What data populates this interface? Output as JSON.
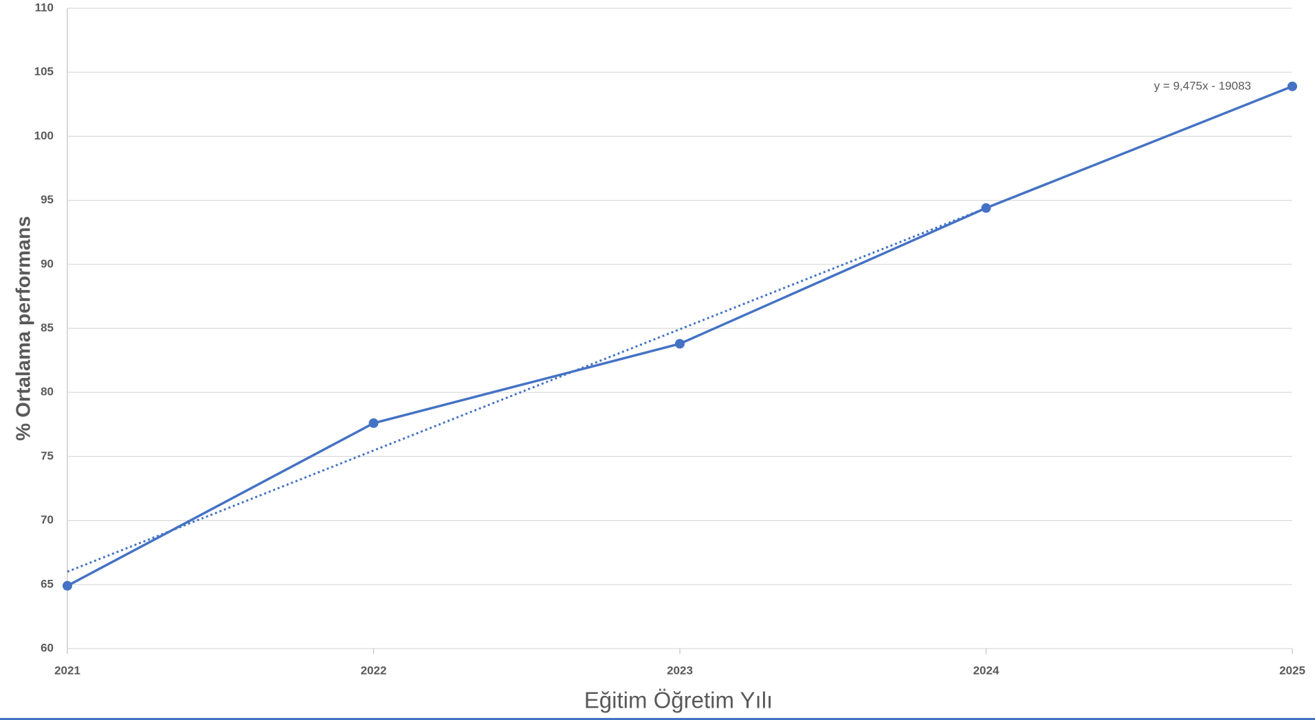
{
  "chart_data": {
    "type": "line",
    "x_label": "Eğitim Öğretim Yılı",
    "y_label": "% Ortalama performans",
    "x": [
      2021,
      2022,
      2023,
      2024,
      2025
    ],
    "series": [
      {
        "color": "#4472c4",
        "values": [
          64.9,
          77.6,
          83.8,
          94.4,
          103.9
        ]
      }
    ],
    "trendline": {
      "label": "y = 9,475x - 19083",
      "color": "#4472c4",
      "x": [
        2021,
        2024
      ],
      "values": [
        66,
        94.4
      ]
    },
    "xlim": [
      2021,
      2025
    ],
    "xticks": [
      2021,
      2022,
      2023,
      2024,
      2025
    ],
    "ylim": [
      60,
      110
    ],
    "yticks": [
      60,
      65,
      70,
      75,
      80,
      85,
      90,
      95,
      100,
      105,
      110
    ],
    "grid": true
  }
}
